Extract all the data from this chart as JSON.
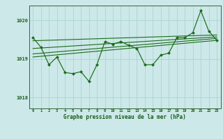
{
  "title": "Graphe pression niveau de la mer (hPa)",
  "x_values": [
    0,
    1,
    2,
    3,
    4,
    5,
    6,
    7,
    8,
    9,
    10,
    11,
    12,
    13,
    14,
    15,
    16,
    17,
    18,
    19,
    20,
    21,
    22,
    23
  ],
  "y_values": [
    1019.55,
    1019.3,
    1018.85,
    1019.05,
    1018.65,
    1018.62,
    1018.67,
    1018.42,
    1018.85,
    1019.45,
    1019.38,
    1019.45,
    1019.35,
    1019.27,
    1018.85,
    1018.85,
    1019.1,
    1019.15,
    1019.55,
    1019.55,
    1019.68,
    1020.25,
    1019.72,
    1019.48
  ],
  "trend_lines": [
    {
      "x0": 0,
      "y0": 1019.47,
      "x1": 23,
      "y1": 1019.62
    },
    {
      "x0": 0,
      "y0": 1019.27,
      "x1": 23,
      "y1": 1019.57
    },
    {
      "x0": 0,
      "y0": 1019.13,
      "x1": 23,
      "y1": 1019.53
    },
    {
      "x0": 0,
      "y0": 1019.05,
      "x1": 23,
      "y1": 1019.48
    }
  ],
  "line_color": "#1a6b1a",
  "bg_color": "#cce8e8",
  "grid_color": "#aad4d4",
  "text_color": "#1a5c1a",
  "ylim": [
    1017.72,
    1020.38
  ],
  "yticks": [
    1018,
    1019,
    1020
  ],
  "xlim": [
    -0.5,
    23.5
  ],
  "figsize": [
    3.2,
    2.0
  ],
  "dpi": 100
}
